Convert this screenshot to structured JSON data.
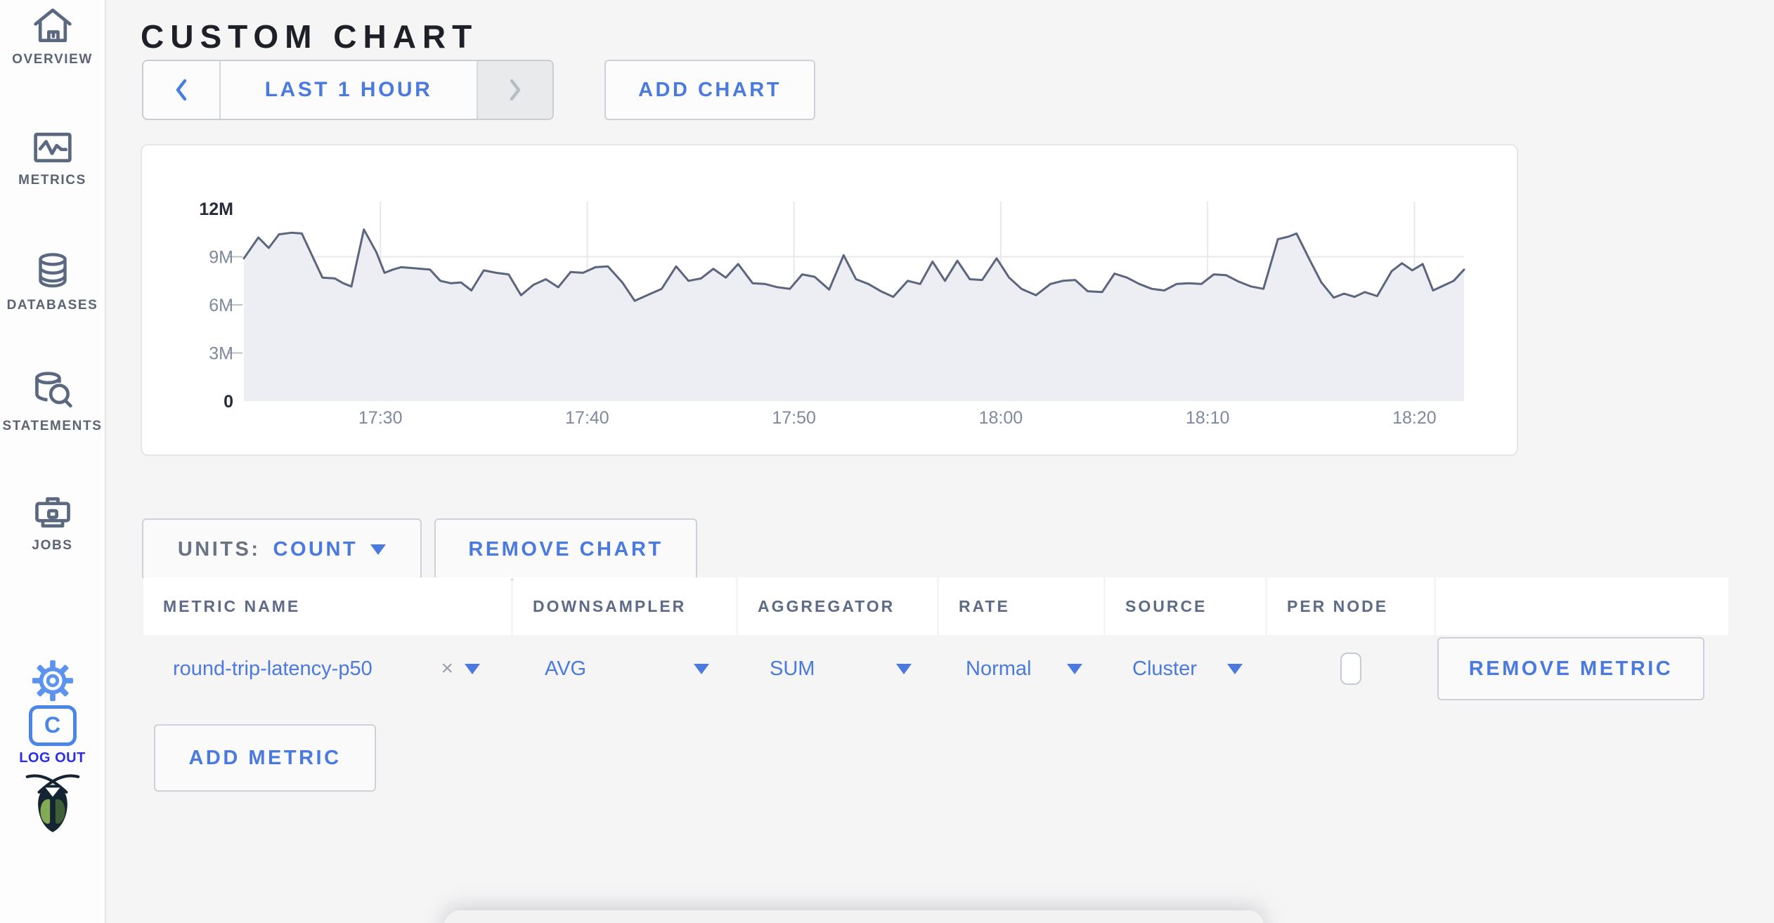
{
  "icons": {
    "clear": "×"
  },
  "sidebar": {
    "items": [
      {
        "id": "overview",
        "label": "OVERVIEW"
      },
      {
        "id": "metrics",
        "label": "METRICS"
      },
      {
        "id": "databases",
        "label": "DATABASES"
      },
      {
        "id": "statements",
        "label": "STATEMENTS"
      },
      {
        "id": "jobs",
        "label": "JOBS"
      }
    ],
    "logout_label": "LOG OUT",
    "logo_letter": "C"
  },
  "header": {
    "title": "CUSTOM CHART"
  },
  "toolbar": {
    "time_range_label": "LAST 1 HOUR",
    "add_chart_label": "ADD CHART"
  },
  "chart_controls": {
    "units_label": "UNITS:",
    "units_value": "COUNT",
    "remove_chart_label": "REMOVE CHART",
    "remove_metric_label": "REMOVE METRIC",
    "add_metric_label": "ADD METRIC"
  },
  "table": {
    "headers": [
      "METRIC NAME",
      "DOWNSAMPLER",
      "AGGREGATOR",
      "RATE",
      "SOURCE",
      "PER NODE"
    ],
    "rows": [
      {
        "metric_name": "round-trip-latency-p50",
        "downsampler": "AVG",
        "aggregator": "SUM",
        "rate": "Normal",
        "source": "Cluster",
        "per_node_checked": false
      }
    ]
  },
  "chart_data": {
    "type": "area",
    "series_name": "round-trip-latency-p50",
    "units": "count",
    "x_unit": "minutes after 17:00",
    "x_domain": [
      23.4,
      82.4
    ],
    "y_domain": [
      0,
      12.44
    ],
    "grid": true,
    "x_ticks": [
      {
        "value": 30,
        "label": "17:30"
      },
      {
        "value": 40,
        "label": "17:40"
      },
      {
        "value": 50,
        "label": "17:50"
      },
      {
        "value": 60,
        "label": "18:00"
      },
      {
        "value": 70,
        "label": "18:10"
      },
      {
        "value": 80,
        "label": "18:20"
      }
    ],
    "y_ticks": [
      {
        "value": 0,
        "label": "0",
        "emphasis": true,
        "grid": false
      },
      {
        "value": 3,
        "label": "3M",
        "emphasis": false,
        "grid": true
      },
      {
        "value": 6,
        "label": "6M",
        "emphasis": false,
        "grid": true
      },
      {
        "value": 9,
        "label": "9M",
        "emphasis": false,
        "grid": true
      },
      {
        "value": 12,
        "label": "12M",
        "emphasis": true,
        "grid": false
      }
    ],
    "colors": {
      "line": "#5b657e",
      "fill": "#eceef3",
      "grid": "#e7e8eb",
      "tick": "#bac0ca",
      "label": "#7e889e",
      "label_strong": "#272c3a"
    },
    "points_millions": [
      [
        23.4,
        8.9
      ],
      [
        24.1,
        10.2
      ],
      [
        24.6,
        9.55
      ],
      [
        25.1,
        10.4
      ],
      [
        25.7,
        10.5
      ],
      [
        26.2,
        10.45
      ],
      [
        26.8,
        8.8
      ],
      [
        27.2,
        7.7
      ],
      [
        27.8,
        7.65
      ],
      [
        28.2,
        7.35
      ],
      [
        28.6,
        7.15
      ],
      [
        29.2,
        10.7
      ],
      [
        29.8,
        9.3
      ],
      [
        30.2,
        8.0
      ],
      [
        30.6,
        8.2
      ],
      [
        31.0,
        8.35
      ],
      [
        31.5,
        8.3
      ],
      [
        32.0,
        8.25
      ],
      [
        32.4,
        8.2
      ],
      [
        32.9,
        7.5
      ],
      [
        33.4,
        7.35
      ],
      [
        33.9,
        7.4
      ],
      [
        34.4,
        6.9
      ],
      [
        35.0,
        8.15
      ],
      [
        35.6,
        8.0
      ],
      [
        36.2,
        7.9
      ],
      [
        36.8,
        6.6
      ],
      [
        37.4,
        7.25
      ],
      [
        38.0,
        7.6
      ],
      [
        38.6,
        7.1
      ],
      [
        39.2,
        8.05
      ],
      [
        39.8,
        8.0
      ],
      [
        40.4,
        8.35
      ],
      [
        41.0,
        8.4
      ],
      [
        41.7,
        7.4
      ],
      [
        42.3,
        6.25
      ],
      [
        42.9,
        6.6
      ],
      [
        43.6,
        7.0
      ],
      [
        44.3,
        8.4
      ],
      [
        44.9,
        7.5
      ],
      [
        45.5,
        7.65
      ],
      [
        46.1,
        8.25
      ],
      [
        46.7,
        7.7
      ],
      [
        47.3,
        8.55
      ],
      [
        48.0,
        7.35
      ],
      [
        48.6,
        7.3
      ],
      [
        49.2,
        7.1
      ],
      [
        49.8,
        7.0
      ],
      [
        50.4,
        7.9
      ],
      [
        51.0,
        7.75
      ],
      [
        51.7,
        6.95
      ],
      [
        52.4,
        9.1
      ],
      [
        53.0,
        7.6
      ],
      [
        53.6,
        7.3
      ],
      [
        54.2,
        6.85
      ],
      [
        54.8,
        6.5
      ],
      [
        55.5,
        7.5
      ],
      [
        56.1,
        7.3
      ],
      [
        56.7,
        8.7
      ],
      [
        57.3,
        7.5
      ],
      [
        57.9,
        8.75
      ],
      [
        58.5,
        7.6
      ],
      [
        59.1,
        7.55
      ],
      [
        59.8,
        8.9
      ],
      [
        60.4,
        7.7
      ],
      [
        61.0,
        7.0
      ],
      [
        61.7,
        6.6
      ],
      [
        62.4,
        7.3
      ],
      [
        63.0,
        7.5
      ],
      [
        63.6,
        7.55
      ],
      [
        64.2,
        6.85
      ],
      [
        64.9,
        6.8
      ],
      [
        65.5,
        7.95
      ],
      [
        66.1,
        7.7
      ],
      [
        66.7,
        7.3
      ],
      [
        67.3,
        7.0
      ],
      [
        67.9,
        6.9
      ],
      [
        68.5,
        7.3
      ],
      [
        69.1,
        7.35
      ],
      [
        69.7,
        7.3
      ],
      [
        70.3,
        7.9
      ],
      [
        70.9,
        7.85
      ],
      [
        71.5,
        7.45
      ],
      [
        72.1,
        7.15
      ],
      [
        72.7,
        7.0
      ],
      [
        73.4,
        10.1
      ],
      [
        73.9,
        10.25
      ],
      [
        74.3,
        10.45
      ],
      [
        74.9,
        8.9
      ],
      [
        75.5,
        7.4
      ],
      [
        76.1,
        6.45
      ],
      [
        76.6,
        6.7
      ],
      [
        77.1,
        6.5
      ],
      [
        77.6,
        6.8
      ],
      [
        78.2,
        6.55
      ],
      [
        78.9,
        8.1
      ],
      [
        79.4,
        8.6
      ],
      [
        79.9,
        8.15
      ],
      [
        80.4,
        8.55
      ],
      [
        80.9,
        6.9
      ],
      [
        81.4,
        7.2
      ],
      [
        81.9,
        7.5
      ],
      [
        82.4,
        8.2
      ]
    ]
  }
}
